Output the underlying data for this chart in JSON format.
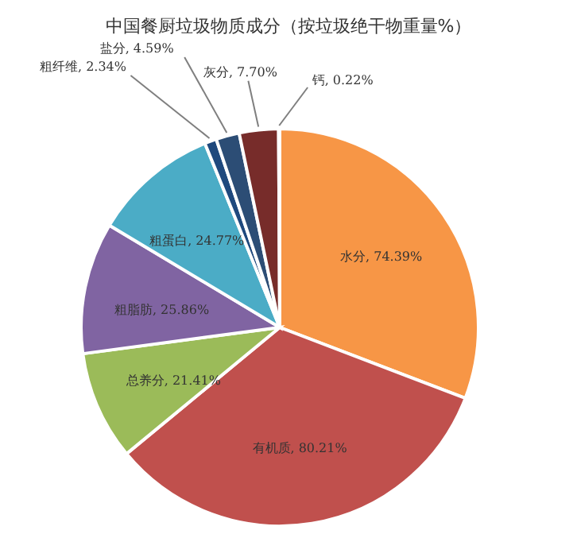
{
  "chart_data": {
    "type": "pie",
    "title": "中国餐厨垃圾物质成分（按垃圾绝干物重量%）",
    "categories": [
      "水分",
      "有机质",
      "总养分",
      "粗脂肪",
      "粗蛋白",
      "粗纤维",
      "盐分",
      "灰分",
      "钙"
    ],
    "values": [
      74.39,
      80.21,
      21.41,
      25.86,
      24.77,
      2.34,
      4.59,
      7.7,
      0.22
    ],
    "value_labels": [
      "74.39%",
      "80.21%",
      "21.41%",
      "25.86%",
      "24.77%",
      "2.34%",
      "4.59%",
      "7.70%",
      "0.22%"
    ],
    "colors": [
      "#f79646",
      "#c0504d",
      "#9bbb59",
      "#8064a2",
      "#4bacc6",
      "#1f497d",
      "#2c4d75",
      "#772c2a",
      "#4f81bd"
    ]
  }
}
